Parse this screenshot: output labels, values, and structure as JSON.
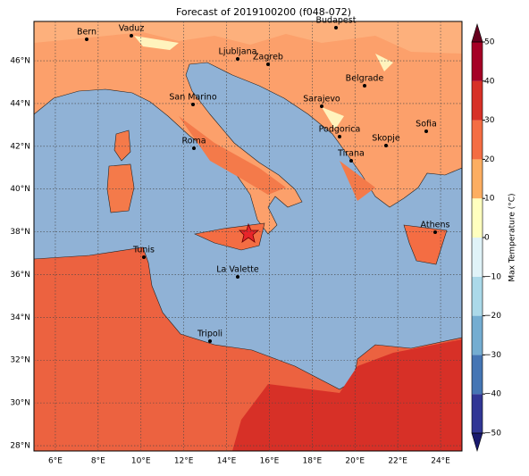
{
  "title": "Forecast of 2019100200 (f048-072)",
  "xlim": [
    5,
    25
  ],
  "ylim": [
    27.75,
    47.84
  ],
  "xticks": [
    {
      "value": 6,
      "label": "6°E"
    },
    {
      "value": 8,
      "label": "8°E"
    },
    {
      "value": 10,
      "label": "10°E"
    },
    {
      "value": 12,
      "label": "12°E"
    },
    {
      "value": 14,
      "label": "14°E"
    },
    {
      "value": 16,
      "label": "16°E"
    },
    {
      "value": 18,
      "label": "18°E"
    },
    {
      "value": 20,
      "label": "20°E"
    },
    {
      "value": 22,
      "label": "22°E"
    },
    {
      "value": 24,
      "label": "24°E"
    }
  ],
  "yticks": [
    {
      "value": 28,
      "label": "28°N"
    },
    {
      "value": 30,
      "label": "30°N"
    },
    {
      "value": 32,
      "label": "32°N"
    },
    {
      "value": 34,
      "label": "34°N"
    },
    {
      "value": 36,
      "label": "36°N"
    },
    {
      "value": 38,
      "label": "38°N"
    },
    {
      "value": 40,
      "label": "40°N"
    },
    {
      "value": 42,
      "label": "42°N"
    },
    {
      "value": 44,
      "label": "44°N"
    },
    {
      "value": 46,
      "label": "46°N"
    }
  ],
  "cities": [
    "Bern",
    "Vaduz",
    "Budapest",
    "Ljubljana",
    "Zagreb",
    "Belgrade",
    "San Marino",
    "Sarajevo",
    "Sofia",
    "Roma",
    "Podgorica",
    "Skopje",
    "Tirana",
    "Athens",
    "Tunis",
    "La Valette",
    "Tripoli"
  ],
  "colorbar": {
    "label": "Max Temperature (°C)",
    "lim": [
      -50,
      50
    ],
    "ticks": [
      {
        "value": -50,
        "label": "−50"
      },
      {
        "value": -40,
        "label": "−40"
      },
      {
        "value": -30,
        "label": "−30"
      },
      {
        "value": -20,
        "label": "−20"
      },
      {
        "value": -10,
        "label": "−10"
      },
      0,
      10,
      20,
      30,
      40,
      50
    ],
    "colors": [
      "#313695",
      "#4575b4",
      "#74add1",
      "#abd9e9",
      "#e0f3f8",
      "#ffffbf",
      "#fdae61",
      "#f46d43",
      "#d73027",
      "#a50026"
    ],
    "under": "#1a1a6e",
    "over": "#67001f"
  }
}
